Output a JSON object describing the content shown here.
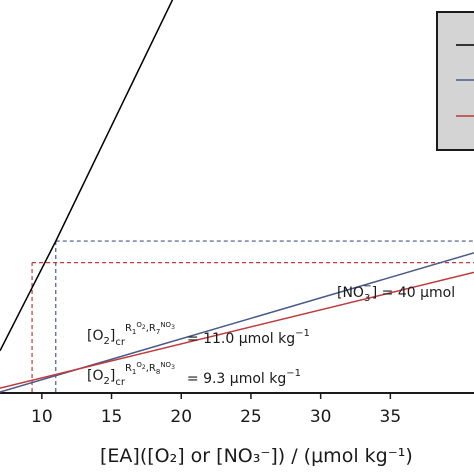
{
  "chart_data": {
    "type": "line",
    "xlabel": "[EA]([O₂] or [NO₃⁻]) / (μmol kg⁻¹)",
    "xlim": [
      7,
      41
    ],
    "x_ticks": [
      "10",
      "15",
      "20",
      "25",
      "30",
      "35"
    ],
    "series": [
      {
        "color": "#000000",
        "x": [
          7,
          11.0,
          19.5
        ],
        "y": [
          0.21,
          0.77,
          2.02
        ]
      },
      {
        "color": "#4a5a8a",
        "x": [
          7,
          41
        ],
        "y": [
          0.0,
          0.71
        ]
      },
      {
        "color": "#c0393b",
        "x": [
          7,
          41
        ],
        "y": [
          0.02,
          0.61
        ]
      }
    ],
    "reference_lines": [
      {
        "color": "#4a5a8a",
        "x": 11.0,
        "y": 0.77
      },
      {
        "color": "#c0393b",
        "x": 9.3,
        "y": 0.66
      }
    ],
    "annotations": {
      "no3_prefix": "[NO",
      "no3_sub": "3",
      "no3_sup": "−",
      "no3_value": "] = 40 μmol",
      "o2_a": "[O",
      "o2_sub": "2",
      "o2_bracket": "]",
      "cr": "cr",
      "r1": "R",
      "r1_sub": "1",
      "o2_sup": "O",
      "o2_sup_sub": "2",
      "comma": ",",
      "no3_sup_a": "NO",
      "no3_sup_b": "3",
      "no3_sup_minus": "−",
      "r7": "R",
      "r7_sub": "7",
      "r8": "R",
      "r8_sub": "8",
      "value_1": "= 11.0 μmol kg",
      "value_2": "=   9.3 μmol kg",
      "unit_exp": "−1"
    },
    "legend": {
      "position": "top-right",
      "colors": [
        "#000000",
        "#4a5a8a",
        "#c0393b"
      ],
      "background": "#d4d4d4"
    },
    "grid": false
  }
}
